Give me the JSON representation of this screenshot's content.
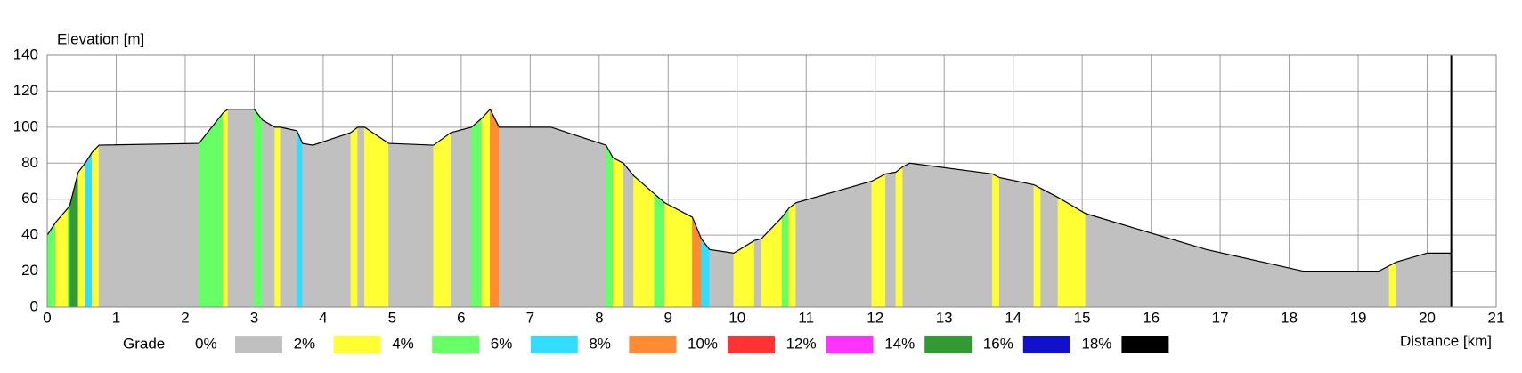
{
  "chart_data": {
    "type": "elevation-profile",
    "y_label": "Elevation [m]",
    "x_label": "Distance [km]",
    "x": [
      0,
      0.12,
      0.3,
      0.33,
      0.45,
      0.55,
      0.65,
      0.75,
      2.2,
      2.55,
      2.62,
      3.0,
      3.12,
      3.3,
      3.38,
      3.62,
      3.7,
      3.85,
      4.4,
      4.5,
      4.6,
      4.95,
      5.6,
      5.85,
      6.15,
      6.3,
      6.42,
      6.55,
      7.3,
      8.1,
      8.2,
      8.35,
      8.5,
      8.8,
      8.95,
      9.35,
      9.48,
      9.6,
      9.95,
      10.25,
      10.35,
      10.65,
      10.75,
      10.85,
      11.95,
      12.15,
      12.3,
      12.4,
      12.5,
      13.7,
      13.8,
      14.3,
      14.4,
      14.65,
      15.05,
      16.8,
      18.2,
      19.3,
      19.45,
      19.55,
      20.0,
      20.35
    ],
    "elevation": [
      40,
      47,
      55,
      57,
      75,
      80,
      86,
      90,
      91,
      108,
      110,
      110,
      104,
      100,
      100,
      98,
      91,
      90,
      97,
      100,
      100,
      91,
      90,
      97,
      100,
      105,
      110,
      100,
      100,
      90,
      83,
      80,
      73,
      63,
      58,
      50,
      38,
      32,
      30,
      37,
      38,
      50,
      55,
      58,
      70,
      74,
      75,
      78,
      80,
      74,
      72,
      68,
      66,
      61,
      52,
      32,
      20,
      20,
      23,
      25,
      30,
      30
    ],
    "segment_colors": [
      "#66ff66",
      "#ffff33",
      "#66ff66",
      "#339933",
      "#ffff33",
      "#33ddff",
      "#ffff33",
      "#c0c0c0",
      "#66ff66",
      "#ffff33",
      "#c0c0c0",
      "#66ff66",
      "#c0c0c0",
      "#ffff33",
      "#c0c0c0",
      "#33ddff",
      "#c0c0c0",
      "#c0c0c0",
      "#ffff33",
      "#c0c0c0",
      "#ffff33",
      "#c0c0c0",
      "#ffff33",
      "#c0c0c0",
      "#66ff66",
      "#ffff33",
      "#ff8c33",
      "#c0c0c0",
      "#c0c0c0",
      "#66ff66",
      "#ffff33",
      "#c0c0c0",
      "#ffff33",
      "#66ff66",
      "#ffff33",
      "#ff8c33",
      "#33ddff",
      "#c0c0c0",
      "#ffff33",
      "#c0c0c0",
      "#ffff33",
      "#66ff66",
      "#ffff33",
      "#c0c0c0",
      "#ffff33",
      "#c0c0c0",
      "#ffff33",
      "#c0c0c0",
      "#c0c0c0",
      "#ffff33",
      "#c0c0c0",
      "#ffff33",
      "#c0c0c0",
      "#ffff33",
      "#c0c0c0",
      "#c0c0c0",
      "#c0c0c0",
      "#c0c0c0",
      "#ffff33",
      "#c0c0c0",
      "#c0c0c0"
    ],
    "xlim": [
      0,
      21
    ],
    "xticks": [
      0,
      1,
      2,
      3,
      4,
      5,
      6,
      7,
      8,
      9,
      10,
      11,
      12,
      13,
      14,
      15,
      16,
      17,
      18,
      19,
      20,
      21
    ],
    "ylim": [
      0,
      140
    ],
    "yticks": [
      0,
      20,
      40,
      60,
      80,
      100,
      120,
      140
    ],
    "grid": true,
    "legend": {
      "title": "Grade",
      "items": [
        {
          "name": "0%",
          "color": "#c0c0c0"
        },
        {
          "name": "2%",
          "color": "#ffff33"
        },
        {
          "name": "4%",
          "color": "#66ff66"
        },
        {
          "name": "6%",
          "color": "#33ddff"
        },
        {
          "name": "8%",
          "color": "#ff8c33"
        },
        {
          "name": "10%",
          "color": "#ff3333"
        },
        {
          "name": "12%",
          "color": "#ff33ff"
        },
        {
          "name": "14%",
          "color": "#339933"
        },
        {
          "name": "16%",
          "color": "#1111cc"
        },
        {
          "name": "18%",
          "color": "#000000"
        }
      ]
    }
  }
}
